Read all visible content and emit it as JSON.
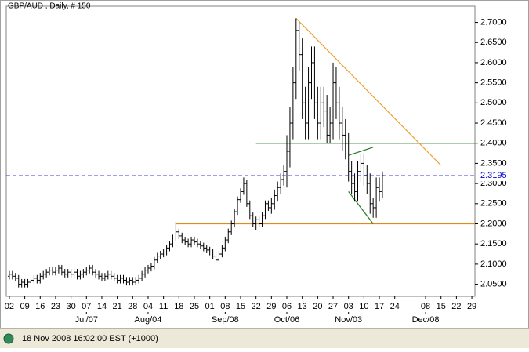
{
  "chart_data": {
    "type": "ohlc",
    "title": "GBP/AUD , Daily, # 150",
    "footer": "18 Nov 2008 16:02:00 EST (+1000)",
    "color": "#000000",
    "open": [
      2.07,
      2.075,
      2.07,
      2.065,
      2.05,
      2.055,
      2.05,
      2.055,
      2.06,
      2.065,
      2.06,
      2.07,
      2.075,
      2.08,
      2.085,
      2.08,
      2.085,
      2.09,
      2.08,
      2.075,
      2.08,
      2.075,
      2.08,
      2.07,
      2.075,
      2.08,
      2.085,
      2.09,
      2.08,
      2.075,
      2.07,
      2.065,
      2.07,
      2.075,
      2.07,
      2.065,
      2.06,
      2.065,
      2.06,
      2.055,
      2.06,
      2.055,
      2.06,
      2.065,
      2.075,
      2.085,
      2.09,
      2.095,
      2.11,
      2.12,
      2.125,
      2.13,
      2.14,
      2.15,
      2.165,
      2.18,
      2.17,
      2.16,
      2.155,
      2.15,
      2.16,
      2.155,
      2.15,
      2.145,
      2.14,
      2.135,
      2.13,
      2.12,
      2.11,
      2.125,
      2.14,
      2.16,
      2.18,
      2.2,
      2.23,
      2.26,
      2.28,
      2.3,
      2.25,
      2.22,
      2.2,
      2.21,
      2.2,
      2.22,
      2.25,
      2.24,
      2.25,
      2.27,
      2.29,
      2.31,
      2.33,
      2.38,
      2.45,
      2.55,
      2.68,
      2.62,
      2.5,
      2.45,
      2.55,
      2.6,
      2.5,
      2.45,
      2.5,
      2.48,
      2.42,
      2.45,
      2.55,
      2.5,
      2.45,
      2.42,
      2.4,
      2.33,
      2.3,
      2.28,
      2.33,
      2.35,
      2.32,
      2.3,
      2.25,
      2.24,
      2.29,
      2.28
    ],
    "high": [
      2.083,
      2.083,
      2.078,
      2.073,
      2.063,
      2.063,
      2.063,
      2.068,
      2.073,
      2.073,
      2.078,
      2.083,
      2.088,
      2.093,
      2.093,
      2.093,
      2.098,
      2.098,
      2.088,
      2.088,
      2.088,
      2.088,
      2.088,
      2.083,
      2.088,
      2.093,
      2.098,
      2.098,
      2.088,
      2.083,
      2.078,
      2.078,
      2.083,
      2.083,
      2.078,
      2.073,
      2.073,
      2.073,
      2.068,
      2.068,
      2.068,
      2.068,
      2.073,
      2.083,
      2.093,
      2.098,
      2.103,
      2.118,
      2.128,
      2.133,
      2.138,
      2.148,
      2.158,
      2.173,
      2.205,
      2.188,
      2.178,
      2.168,
      2.163,
      2.168,
      2.168,
      2.163,
      2.158,
      2.153,
      2.148,
      2.143,
      2.138,
      2.128,
      2.133,
      2.148,
      2.168,
      2.188,
      2.208,
      2.238,
      2.268,
      2.288,
      2.315,
      2.308,
      2.258,
      2.228,
      2.218,
      2.218,
      2.228,
      2.258,
      2.258,
      2.265,
      2.285,
      2.305,
      2.325,
      2.345,
      2.42,
      2.49,
      2.59,
      2.71,
      2.7,
      2.66,
      2.54,
      2.59,
      2.64,
      2.64,
      2.54,
      2.54,
      2.54,
      2.52,
      2.49,
      2.6,
      2.59,
      2.54,
      2.49,
      2.46,
      2.425,
      2.355,
      2.325,
      2.355,
      2.375,
      2.375,
      2.345,
      2.325,
      2.265,
      2.315,
      2.315,
      2.33
    ],
    "low": [
      2.062,
      2.062,
      2.057,
      2.042,
      2.042,
      2.042,
      2.042,
      2.047,
      2.052,
      2.052,
      2.052,
      2.062,
      2.067,
      2.072,
      2.072,
      2.072,
      2.077,
      2.072,
      2.067,
      2.067,
      2.067,
      2.067,
      2.062,
      2.062,
      2.067,
      2.072,
      2.077,
      2.072,
      2.067,
      2.062,
      2.057,
      2.057,
      2.062,
      2.062,
      2.057,
      2.052,
      2.052,
      2.052,
      2.047,
      2.047,
      2.047,
      2.047,
      2.052,
      2.057,
      2.067,
      2.077,
      2.082,
      2.087,
      2.102,
      2.112,
      2.117,
      2.122,
      2.132,
      2.142,
      2.157,
      2.162,
      2.152,
      2.147,
      2.142,
      2.142,
      2.147,
      2.142,
      2.137,
      2.132,
      2.127,
      2.122,
      2.112,
      2.102,
      2.102,
      2.117,
      2.132,
      2.152,
      2.172,
      2.192,
      2.222,
      2.252,
      2.272,
      2.242,
      2.212,
      2.192,
      2.185,
      2.192,
      2.192,
      2.212,
      2.232,
      2.225,
      2.235,
      2.255,
      2.275,
      2.295,
      2.29,
      2.34,
      2.41,
      2.51,
      2.58,
      2.46,
      2.41,
      2.41,
      2.51,
      2.46,
      2.41,
      2.41,
      2.44,
      2.4,
      2.4,
      2.41,
      2.46,
      2.41,
      2.38,
      2.36,
      2.305,
      2.275,
      2.255,
      2.255,
      2.305,
      2.295,
      2.275,
      2.225,
      2.215,
      2.215,
      2.255,
      2.265
    ],
    "close": [
      2.075,
      2.07,
      2.065,
      2.05,
      2.055,
      2.05,
      2.055,
      2.06,
      2.065,
      2.06,
      2.07,
      2.075,
      2.08,
      2.085,
      2.08,
      2.085,
      2.09,
      2.08,
      2.075,
      2.08,
      2.075,
      2.08,
      2.07,
      2.075,
      2.08,
      2.085,
      2.09,
      2.08,
      2.075,
      2.07,
      2.065,
      2.07,
      2.075,
      2.07,
      2.065,
      2.06,
      2.065,
      2.06,
      2.055,
      2.06,
      2.055,
      2.06,
      2.065,
      2.075,
      2.085,
      2.09,
      2.095,
      2.11,
      2.12,
      2.125,
      2.13,
      2.14,
      2.15,
      2.165,
      2.18,
      2.17,
      2.16,
      2.155,
      2.15,
      2.16,
      2.155,
      2.15,
      2.145,
      2.14,
      2.135,
      2.13,
      2.12,
      2.11,
      2.125,
      2.14,
      2.16,
      2.18,
      2.2,
      2.23,
      2.26,
      2.28,
      2.3,
      2.25,
      2.22,
      2.2,
      2.21,
      2.2,
      2.22,
      2.25,
      2.24,
      2.25,
      2.27,
      2.29,
      2.31,
      2.33,
      2.38,
      2.45,
      2.55,
      2.68,
      2.62,
      2.5,
      2.45,
      2.55,
      2.6,
      2.5,
      2.45,
      2.5,
      2.48,
      2.42,
      2.45,
      2.55,
      2.5,
      2.45,
      2.42,
      2.4,
      2.33,
      2.3,
      2.28,
      2.33,
      2.35,
      2.32,
      2.3,
      2.25,
      2.24,
      2.29,
      2.28,
      2.3195
    ],
    "last_color": "#0000cc",
    "xlim": [
      -1,
      151
    ],
    "xticks": [
      {
        "value": 0,
        "label": "02"
      },
      {
        "value": 5,
        "label": "09"
      },
      {
        "value": 10,
        "label": "16"
      },
      {
        "value": 15,
        "label": "23"
      },
      {
        "value": 20,
        "label": "30"
      },
      {
        "value": 25,
        "label": "07"
      },
      {
        "value": 30,
        "label": "14"
      },
      {
        "value": 35,
        "label": "21"
      },
      {
        "value": 40,
        "label": "28"
      },
      {
        "value": 45,
        "label": "04"
      },
      {
        "value": 50,
        "label": "11"
      },
      {
        "value": 55,
        "label": "18"
      },
      {
        "value": 60,
        "label": "25"
      },
      {
        "value": 65,
        "label": "01"
      },
      {
        "value": 70,
        "label": "08"
      },
      {
        "value": 75,
        "label": "15"
      },
      {
        "value": 80,
        "label": "22"
      },
      {
        "value": 85,
        "label": "29"
      },
      {
        "value": 90,
        "label": "06"
      },
      {
        "value": 95,
        "label": "13"
      },
      {
        "value": 100,
        "label": "20"
      },
      {
        "value": 105,
        "label": "27"
      },
      {
        "value": 110,
        "label": "03"
      },
      {
        "value": 115,
        "label": "10"
      },
      {
        "value": 120,
        "label": "17"
      },
      {
        "value": 125,
        "label": "24"
      },
      {
        "value": 135,
        "label": "08"
      },
      {
        "value": 140,
        "label": "15"
      },
      {
        "value": 145,
        "label": "22"
      },
      {
        "value": 150,
        "label": "29"
      }
    ],
    "month_ticks": [
      {
        "value": 25,
        "label": "Jul/07"
      },
      {
        "value": 45,
        "label": "Aug/04"
      },
      {
        "value": 70,
        "label": "Sep/08"
      },
      {
        "value": 90,
        "label": "Oct/06"
      },
      {
        "value": 110,
        "label": "Nov/03"
      },
      {
        "value": 135,
        "label": "Dec/08"
      }
    ],
    "ylim": [
      2.02,
      2.74
    ],
    "yticks": [
      {
        "value": 2.05,
        "label": "2.0500"
      },
      {
        "value": 2.1,
        "label": "2.1000"
      },
      {
        "value": 2.15,
        "label": "2.1500"
      },
      {
        "value": 2.2,
        "label": "2.2000"
      },
      {
        "value": 2.25,
        "label": "2.2500"
      },
      {
        "value": 2.3,
        "label": "2.3000"
      },
      {
        "value": 2.35,
        "label": "2.3500"
      },
      {
        "value": 2.4,
        "label": "2.4000"
      },
      {
        "value": 2.45,
        "label": "2.4500"
      },
      {
        "value": 2.5,
        "label": "2.5000"
      },
      {
        "value": 2.55,
        "label": "2.5500"
      },
      {
        "value": 2.6,
        "label": "2.6000"
      },
      {
        "value": 2.65,
        "label": "2.6500"
      },
      {
        "value": 2.7,
        "label": "2.7000"
      }
    ],
    "grid": false,
    "lines": [
      {
        "x": [
          80,
          151
        ],
        "y": [
          2.4,
          2.4
        ],
        "color": "#1f7a1f"
      },
      {
        "x": [
          54,
          151
        ],
        "y": [
          2.2,
          2.2
        ],
        "color": "#e08a1e"
      },
      {
        "x": [
          93,
          140
        ],
        "y": [
          2.71,
          2.345
        ],
        "color": "#e8a030"
      },
      {
        "x": [
          110,
          118
        ],
        "y": [
          2.37,
          2.39
        ],
        "color": "#1f7a1f"
      },
      {
        "x": [
          110,
          118
        ],
        "y": [
          2.28,
          2.2
        ],
        "color": "#1f7a1f"
      }
    ]
  }
}
